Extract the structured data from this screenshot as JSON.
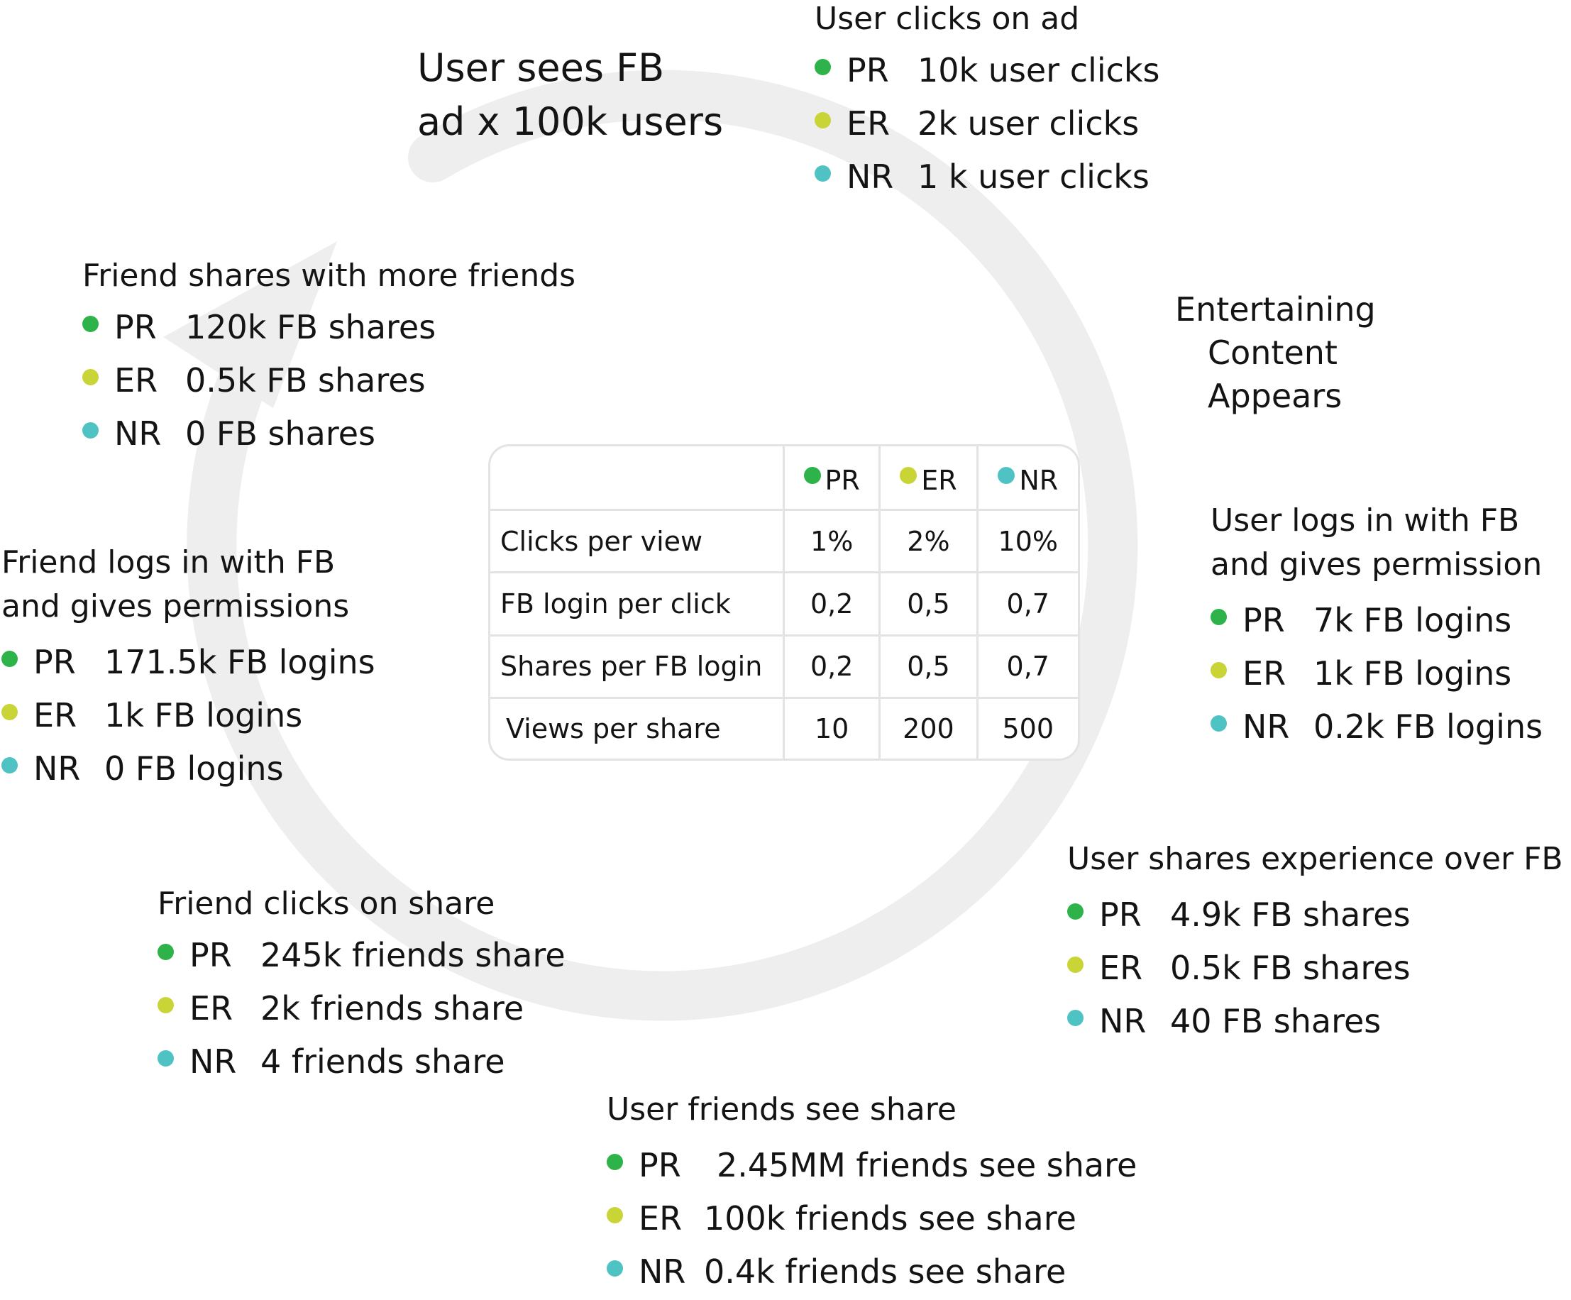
{
  "colors": {
    "PR": "#2db34a",
    "ER": "#c9d437",
    "NR": "#4fc2c4",
    "arrow": "#eeeeee"
  },
  "start": {
    "line1": "User sees FB",
    "line2": "ad x 100k users"
  },
  "entertaining": {
    "line1": "Entertaining",
    "line2": "Content",
    "line3": "Appears"
  },
  "stages": {
    "clicks_ad": {
      "title": "User clicks on ad",
      "rows": [
        {
          "code": "PR",
          "value": "10k user clicks"
        },
        {
          "code": "ER",
          "value": "2k user clicks"
        },
        {
          "code": "NR",
          "value": "1 k user clicks"
        }
      ]
    },
    "user_login": {
      "title1": "User logs in with FB",
      "title2": "and gives permission",
      "rows": [
        {
          "code": "PR",
          "value": "7k FB logins"
        },
        {
          "code": "ER",
          "value": "1k FB logins"
        },
        {
          "code": "NR",
          "value": "0.2k FB logins"
        }
      ]
    },
    "user_shares": {
      "title": "User shares experience over FB",
      "rows": [
        {
          "code": "PR",
          "value": "4.9k FB shares"
        },
        {
          "code": "ER",
          "value": "0.5k FB shares"
        },
        {
          "code": "NR",
          "value": "40 FB shares"
        }
      ]
    },
    "friends_see": {
      "title": "User friends see share",
      "rows": [
        {
          "code": "PR",
          "value": "2.45MM friends see share"
        },
        {
          "code": "ER",
          "value": "100k friends see share"
        },
        {
          "code": "NR",
          "value": "0.4k friends see share"
        }
      ]
    },
    "friend_clicks": {
      "title": "Friend clicks on share",
      "rows": [
        {
          "code": "PR",
          "value": "245k friends share"
        },
        {
          "code": "ER",
          "value": "2k friends share"
        },
        {
          "code": "NR",
          "value": "4 friends share"
        }
      ]
    },
    "friend_login": {
      "title1": "Friend logs in with FB",
      "title2": "and gives permissions",
      "rows": [
        {
          "code": "PR",
          "value": "171.5k FB logins"
        },
        {
          "code": "ER",
          "value": "1k FB logins"
        },
        {
          "code": "NR",
          "value": "0 FB logins"
        }
      ]
    },
    "friend_shares": {
      "title": "Friend shares with more friends",
      "rows": [
        {
          "code": "PR",
          "value": "120k FB shares"
        },
        {
          "code": "ER",
          "value": "0.5k FB shares"
        },
        {
          "code": "NR",
          "value": "0 FB shares"
        }
      ]
    }
  },
  "table": {
    "columns": [
      "PR",
      "ER",
      "NR"
    ],
    "rows": [
      {
        "label": "Clicks per view",
        "values": [
          "1%",
          "2%",
          "10%"
        ]
      },
      {
        "label": "FB login per click",
        "values": [
          "0,2",
          "0,5",
          "0,7"
        ]
      },
      {
        "label": "Shares per FB login",
        "values": [
          "0,2",
          "0,5",
          "0,7"
        ]
      },
      {
        "label": "Views per share",
        "values": [
          "10",
          "200",
          "500"
        ]
      }
    ]
  }
}
